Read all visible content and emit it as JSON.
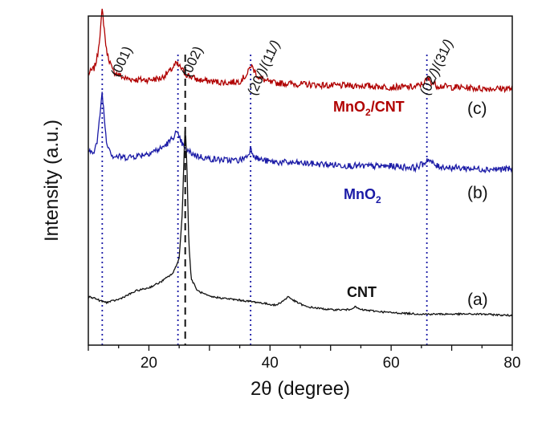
{
  "chart_data": {
    "type": "line",
    "title": "",
    "xlabel": "2θ (degree)",
    "ylabel": "Intensity (a.u.)",
    "xlim": [
      10,
      80
    ],
    "x_ticks": [
      20,
      40,
      60,
      80
    ],
    "y_ticks_shown": false,
    "grid": false,
    "legend": "none",
    "series": [
      {
        "name": "MnO2/CNT",
        "label_parts": [
          "MnO",
          "2",
          "/CNT"
        ],
        "curve_tag": "(c)",
        "color": "#b00000",
        "points": [
          [
            10.0,
            0.83
          ],
          [
            11.0,
            0.85
          ],
          [
            11.5,
            0.89
          ],
          [
            12.0,
            0.98
          ],
          [
            12.3,
            1.05
          ],
          [
            12.6,
            0.99
          ],
          [
            13.0,
            0.91
          ],
          [
            14,
            0.84
          ],
          [
            16,
            0.815
          ],
          [
            18,
            0.81
          ],
          [
            20,
            0.81
          ],
          [
            22,
            0.815
          ],
          [
            23.5,
            0.84
          ],
          [
            24.5,
            0.865
          ],
          [
            25.3,
            0.85
          ],
          [
            26,
            0.83
          ],
          [
            28,
            0.81
          ],
          [
            30,
            0.805
          ],
          [
            33,
            0.8
          ],
          [
            35,
            0.805
          ],
          [
            36.3,
            0.83
          ],
          [
            36.8,
            0.86
          ],
          [
            37.3,
            0.845
          ],
          [
            38,
            0.82
          ],
          [
            40,
            0.8
          ],
          [
            45,
            0.795
          ],
          [
            50,
            0.79
          ],
          [
            55,
            0.79
          ],
          [
            60,
            0.785
          ],
          [
            64,
            0.785
          ],
          [
            65.5,
            0.8
          ],
          [
            66,
            0.815
          ],
          [
            66.5,
            0.805
          ],
          [
            67.5,
            0.79
          ],
          [
            70,
            0.785
          ],
          [
            75,
            0.78
          ],
          [
            78,
            0.78
          ],
          [
            80,
            0.78
          ]
        ]
      },
      {
        "name": "MnO2",
        "label_parts": [
          "MnO",
          "2",
          ""
        ],
        "curve_tag": "(b)",
        "color": "#1a1aa6",
        "points": [
          [
            10.0,
            0.56
          ],
          [
            11.0,
            0.57
          ],
          [
            11.5,
            0.6
          ],
          [
            12.0,
            0.71
          ],
          [
            12.3,
            0.77
          ],
          [
            12.6,
            0.69
          ],
          [
            13.0,
            0.6
          ],
          [
            14,
            0.55
          ],
          [
            16,
            0.545
          ],
          [
            18,
            0.55
          ],
          [
            20,
            0.56
          ],
          [
            22,
            0.575
          ],
          [
            23.5,
            0.6
          ],
          [
            24.5,
            0.63
          ],
          [
            25.3,
            0.6
          ],
          [
            26,
            0.57
          ],
          [
            28,
            0.55
          ],
          [
            30,
            0.54
          ],
          [
            33,
            0.535
          ],
          [
            35,
            0.535
          ],
          [
            36.3,
            0.55
          ],
          [
            36.8,
            0.575
          ],
          [
            37.3,
            0.555
          ],
          [
            38,
            0.54
          ],
          [
            40,
            0.53
          ],
          [
            45,
            0.525
          ],
          [
            50,
            0.52
          ],
          [
            55,
            0.515
          ],
          [
            60,
            0.515
          ],
          [
            64,
            0.51
          ],
          [
            65.5,
            0.525
          ],
          [
            66,
            0.54
          ],
          [
            66.5,
            0.53
          ],
          [
            67.5,
            0.515
          ],
          [
            70,
            0.51
          ],
          [
            75,
            0.505
          ],
          [
            78,
            0.505
          ],
          [
            80,
            0.505
          ]
        ]
      },
      {
        "name": "CNT",
        "label_parts": [
          "CNT",
          "",
          ""
        ],
        "curve_tag": "(a)",
        "color": "#111111",
        "points": [
          [
            10.0,
            0.07
          ],
          [
            11,
            0.065
          ],
          [
            12,
            0.055
          ],
          [
            13,
            0.05
          ],
          [
            15,
            0.06
          ],
          [
            18,
            0.09
          ],
          [
            20,
            0.1
          ],
          [
            22,
            0.12
          ],
          [
            24,
            0.15
          ],
          [
            25,
            0.2
          ],
          [
            25.5,
            0.35
          ],
          [
            25.8,
            0.55
          ],
          [
            26.0,
            0.66
          ],
          [
            26.3,
            0.5
          ],
          [
            26.6,
            0.25
          ],
          [
            27,
            0.13
          ],
          [
            28,
            0.09
          ],
          [
            30,
            0.07
          ],
          [
            34,
            0.06
          ],
          [
            38,
            0.05
          ],
          [
            41,
            0.04
          ],
          [
            42.5,
            0.06
          ],
          [
            43,
            0.07
          ],
          [
            44,
            0.055
          ],
          [
            46,
            0.035
          ],
          [
            50,
            0.025
          ],
          [
            53,
            0.025
          ],
          [
            54,
            0.035
          ],
          [
            55,
            0.025
          ],
          [
            60,
            0.015
          ],
          [
            65,
            0.01
          ],
          [
            70,
            0.01
          ],
          [
            75,
            0.01
          ],
          [
            80,
            0.005
          ]
        ]
      }
    ],
    "reference_lines": [
      {
        "x": 12.3,
        "style": "dotted",
        "color": "#1a1aa6",
        "label_lines": [
          "(001)"
        ]
      },
      {
        "x": 24.8,
        "style": "dotted",
        "color": "#1a1aa6",
        "label_lines": [
          "(002)"
        ]
      },
      {
        "x": 26.0,
        "style": "dashed",
        "color": "#111111",
        "label_lines": []
      },
      {
        "x": 36.8,
        "style": "dotted",
        "color": "#1a1aa6",
        "label_lines": [
          "(20",
          "/)",
          "/(11",
          "/)"
        ]
      },
      {
        "x": 65.9,
        "style": "dotted",
        "color": "#1a1aa6",
        "label_lines": [
          "(02",
          "/)",
          "/(31",
          "/)"
        ]
      }
    ]
  }
}
